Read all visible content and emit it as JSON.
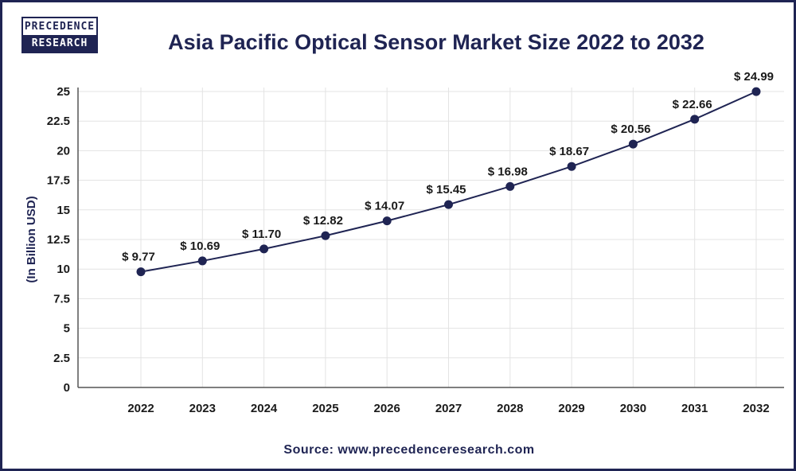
{
  "logo": {
    "line1": "PRECEDENCE",
    "line2": "RESEARCH"
  },
  "source": "Source: www.precedenceresearch.com",
  "colors": {
    "line": "#1f2453",
    "title": "#1f2453",
    "grid": "#e3e3e3"
  },
  "chart_data": {
    "type": "line",
    "title": "Asia Pacific Optical Sensor Market Size 2022 to 2032",
    "xlabel": "",
    "ylabel": "(In Billion USD)",
    "ylim": [
      0,
      25
    ],
    "yticks": [
      "0",
      "2.5",
      "5",
      "7.5",
      "10",
      "12.5",
      "15",
      "17.5",
      "20",
      "22.5",
      "25"
    ],
    "categories": [
      "2022",
      "2023",
      "2024",
      "2025",
      "2026",
      "2027",
      "2028",
      "2029",
      "2030",
      "2031",
      "2032"
    ],
    "values": [
      9.77,
      10.69,
      11.7,
      12.82,
      14.07,
      15.45,
      16.98,
      18.67,
      20.56,
      22.66,
      24.99
    ],
    "data_labels": [
      "$ 9.77",
      "$ 10.69",
      "$ 11.70",
      "$ 12.82",
      "$ 14.07",
      "$ 15.45",
      "$ 16.98",
      "$ 18.67",
      "$ 20.56",
      "$ 22.66",
      "$ 24.99"
    ],
    "grid": true,
    "legend": "none"
  }
}
